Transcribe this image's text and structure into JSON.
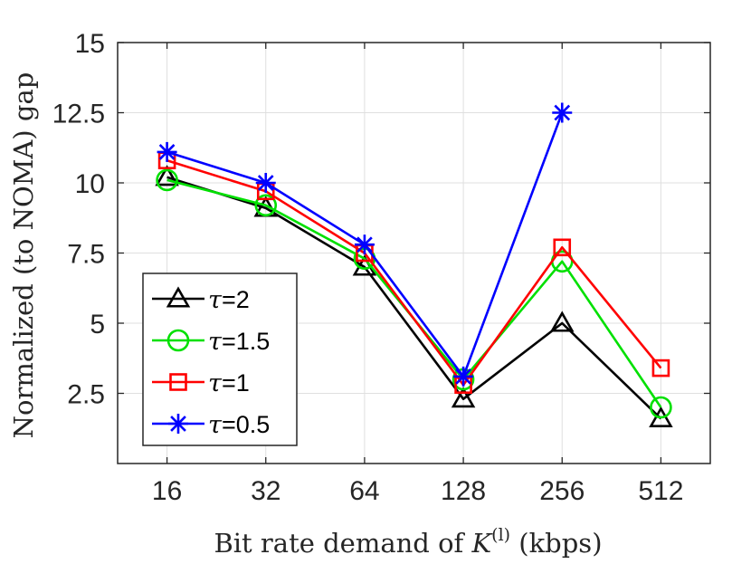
{
  "chart_data": {
    "type": "line",
    "title": "",
    "categories": [
      "16",
      "32",
      "64",
      "128",
      "256",
      "512"
    ],
    "xlabel_prefix": "Bit rate demand of ",
    "xlabel_var": "K",
    "xlabel_sup": "(l)",
    "xlabel_suffix": " (kbps)",
    "ylabel": "Normalized (to NOMA) gap",
    "ylim": [
      0,
      15
    ],
    "yticks": [
      2.5,
      5,
      7.5,
      10,
      12.5,
      15
    ],
    "ytick_labels": [
      "2.5",
      "5",
      "7.5",
      "10",
      "12.5",
      "15"
    ],
    "grid": true,
    "legend_position": "bottom-left",
    "series": [
      {
        "name": "τ=2",
        "var": "τ",
        "eq": "=2",
        "color": "#000000",
        "marker": "triangle",
        "values": [
          10.2,
          9.1,
          7.0,
          2.3,
          5.0,
          1.6
        ]
      },
      {
        "name": "τ=1.5",
        "var": "τ",
        "eq": "=1.5",
        "color": "#00e000",
        "marker": "circle",
        "values": [
          10.1,
          9.2,
          7.3,
          3.0,
          7.2,
          2.0
        ]
      },
      {
        "name": "τ=1",
        "var": "τ",
        "eq": "=1",
        "color": "#ff0000",
        "marker": "square",
        "values": [
          10.8,
          9.7,
          7.5,
          2.8,
          7.7,
          3.4
        ]
      },
      {
        "name": "τ=0.5",
        "var": "τ",
        "eq": "=0.5",
        "color": "#0000ff",
        "marker": "asterisk",
        "values": [
          11.1,
          10.0,
          7.8,
          3.1,
          12.5,
          null
        ]
      }
    ]
  }
}
